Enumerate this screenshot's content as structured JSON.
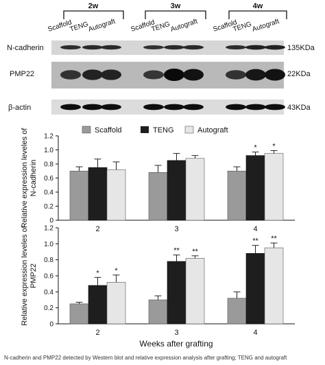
{
  "figure": {
    "timepoint_groups": [
      "2w",
      "3w",
      "4w"
    ],
    "lane_labels": [
      "Scaffold",
      "TENG",
      "Autograft",
      "Scaffold",
      "TENG",
      "Autograft",
      "Scaffold",
      "TENG",
      "Autograft"
    ],
    "blots": [
      {
        "protein": "N-cadherin",
        "mw": "135KDa",
        "intensity": [
          0.55,
          0.6,
          0.6,
          0.5,
          0.6,
          0.6,
          0.55,
          0.7,
          0.7
        ]
      },
      {
        "protein": "PMP22",
        "mw": "22KDa",
        "intensity": [
          0.5,
          0.7,
          0.7,
          0.45,
          1.0,
          0.9,
          0.5,
          0.85,
          0.9
        ]
      },
      {
        "protein": "β-actin",
        "mw": "43KDa",
        "intensity": [
          0.95,
          0.95,
          0.95,
          0.95,
          0.95,
          0.95,
          0.95,
          0.95,
          0.95
        ]
      }
    ],
    "caption_fragment": "N-cadherin and PMP22 detected by Western blot and relative expression analysis after grafting; TENG and autograft"
  },
  "colors": {
    "scaffold": "#9a9a9a",
    "teng": "#1e1e1e",
    "autograft": "#e6e6e6"
  },
  "chart_data": [
    {
      "type": "bar",
      "categories": [
        "2",
        "3",
        "4"
      ],
      "series": [
        {
          "name": "Scaffold",
          "values": [
            0.7,
            0.68,
            0.7
          ],
          "errors": [
            0.06,
            0.1,
            0.06
          ],
          "marks": [
            "",
            "",
            ""
          ]
        },
        {
          "name": "TENG",
          "values": [
            0.75,
            0.85,
            0.92
          ],
          "errors": [
            0.12,
            0.1,
            0.05
          ],
          "marks": [
            "",
            "",
            "*"
          ]
        },
        {
          "name": "Autograft",
          "values": [
            0.72,
            0.88,
            0.95
          ],
          "errors": [
            0.11,
            0.04,
            0.04
          ],
          "marks": [
            "",
            "",
            "*"
          ]
        }
      ],
      "ylabel": "Relative expression leveles of N-cadherin",
      "ylim": [
        0,
        1.2
      ],
      "yticks": [
        "0",
        "0.2",
        "0.4",
        "0.6",
        "0.8",
        "1.0",
        "1.2"
      ],
      "legend": "top"
    },
    {
      "type": "bar",
      "categories": [
        "2",
        "3",
        "4"
      ],
      "series": [
        {
          "name": "Scaffold",
          "values": [
            0.25,
            0.3,
            0.32
          ],
          "errors": [
            0.02,
            0.05,
            0.08
          ],
          "marks": [
            "",
            "",
            ""
          ]
        },
        {
          "name": "TENG",
          "values": [
            0.48,
            0.78,
            0.88
          ],
          "errors": [
            0.1,
            0.08,
            0.1
          ],
          "marks": [
            "*",
            "**",
            "**"
          ]
        },
        {
          "name": "Autograft",
          "values": [
            0.52,
            0.82,
            0.95
          ],
          "errors": [
            0.09,
            0.03,
            0.06
          ],
          "marks": [
            "*",
            "**",
            "**"
          ]
        }
      ],
      "xlabel": "Weeks after grafting",
      "ylabel": "Relative expression leveles of PMP22",
      "ylim": [
        0,
        1.2
      ],
      "yticks": [
        "0",
        "0.2",
        "0.4",
        "0.6",
        "0.8",
        "1.0",
        "1.2"
      ]
    }
  ]
}
